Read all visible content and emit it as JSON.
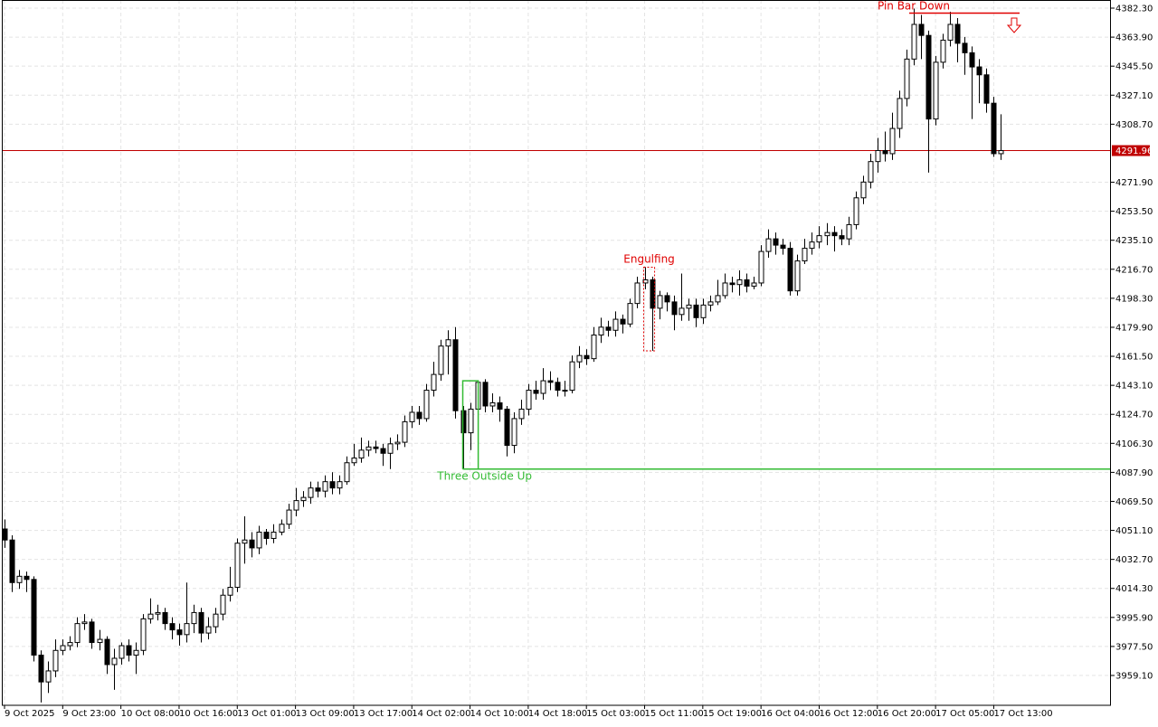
{
  "chart_data": {
    "type": "candlestick",
    "categories": [
      "9 Oct 2025",
      null,
      null,
      null,
      null,
      null,
      null,
      null,
      "9 Oct 23:00",
      null,
      null,
      null,
      null,
      null,
      null,
      null,
      "10 Oct 08:00",
      null,
      null,
      null,
      null,
      null,
      null,
      null,
      "10 Oct 16:00",
      null,
      null,
      null,
      null,
      null,
      null,
      null,
      "13 Oct 01:00",
      null,
      null,
      null,
      null,
      null,
      null,
      null,
      "13 Oct 09:00",
      null,
      null,
      null,
      null,
      null,
      null,
      null,
      "13 Oct 17:00",
      null,
      null,
      null,
      null,
      null,
      null,
      null,
      "14 Oct 02:00",
      null,
      null,
      null,
      null,
      null,
      null,
      null,
      "14 Oct 10:00",
      null,
      null,
      null,
      null,
      null,
      null,
      null,
      "14 Oct 18:00",
      null,
      null,
      null,
      null,
      null,
      null,
      null,
      "15 Oct 03:00",
      null,
      null,
      null,
      null,
      null,
      null,
      null,
      "15 Oct 11:00",
      null,
      null,
      null,
      null,
      null,
      null,
      null,
      "15 Oct 19:00",
      null,
      null,
      null,
      null,
      null,
      null,
      null,
      "16 Oct 04:00",
      null,
      null,
      null,
      null,
      null,
      null,
      null,
      "16 Oct 12:00",
      null,
      null,
      null,
      null,
      null,
      null,
      null,
      "16 Oct 20:00",
      null,
      null,
      null,
      null,
      null,
      null,
      null,
      "17 Oct 05:00",
      null,
      null,
      null,
      null,
      null,
      null,
      null,
      "17 Oct 13:00",
      null
    ],
    "open": [
      4052,
      4045,
      4018,
      4022,
      4020,
      3972,
      3955,
      3962,
      3975,
      3978,
      3980,
      3992,
      3993,
      3980,
      3982,
      3966,
      3970,
      3978,
      3972,
      3975,
      3995,
      3998,
      3999,
      3992,
      3988,
      3985,
      3992,
      3999,
      3986,
      3990,
      3998,
      4010,
      4015,
      4043,
      4045,
      4040,
      4050,
      4046,
      4050,
      4055,
      4064,
      4070,
      4072,
      4078,
      4076,
      4082,
      4078,
      4082,
      4094,
      4097,
      4102,
      4104,
      4103,
      4100,
      4106,
      4107,
      4120,
      4126,
      4122,
      4140,
      4150,
      4168,
      4172,
      4127,
      4113,
      4128,
      4145,
      4130,
      4132,
      4128,
      4105,
      4122,
      4128,
      4140,
      4138,
      4146,
      4145,
      4140,
      4140,
      4158,
      4162,
      4160,
      4175,
      4180,
      4178,
      4185,
      4182,
      4195,
      4208,
      4210,
      4192,
      4200,
      4196,
      4188,
      4192,
      4194,
      4186,
      4194,
      4196,
      4200,
      4208,
      4207,
      4210,
      4206,
      4208,
      4228,
      4236,
      4232,
      4230,
      4203,
      4222,
      4230,
      4234,
      4238,
      4240,
      4238,
      4236,
      4245,
      4262,
      4272,
      4285,
      4292,
      4290,
      4306,
      4325,
      4350,
      4372,
      4365,
      4312,
      4348,
      4362,
      4372,
      4360,
      4354,
      4345,
      4340,
      4322,
      4290
    ],
    "high": [
      4058,
      4048,
      4026,
      4025,
      4022,
      3975,
      3968,
      3982,
      3982,
      3984,
      3996,
      3998,
      3995,
      3988,
      3984,
      3976,
      3980,
      3982,
      3980,
      3998,
      4008,
      4004,
      4002,
      3996,
      3992,
      4018,
      4004,
      4002,
      3996,
      4002,
      4014,
      4028,
      4046,
      4060,
      4050,
      4054,
      4052,
      4055,
      4058,
      4068,
      4078,
      4076,
      4082,
      4082,
      4086,
      4088,
      4086,
      4098,
      4106,
      4110,
      4108,
      4108,
      4106,
      4110,
      4112,
      4124,
      4130,
      4130,
      4144,
      4158,
      4172,
      4178,
      4180,
      4130,
      4132,
      4146,
      4147,
      4138,
      4136,
      4130,
      4126,
      4134,
      4144,
      4146,
      4154,
      4152,
      4148,
      4146,
      4162,
      4168,
      4166,
      4180,
      4186,
      4184,
      4190,
      4188,
      4198,
      4212,
      4218,
      4212,
      4203,
      4202,
      4200,
      4214,
      4198,
      4198,
      4198,
      4200,
      4210,
      4214,
      4212,
      4216,
      4214,
      4212,
      4232,
      4242,
      4240,
      4236,
      4234,
      4226,
      4236,
      4240,
      4244,
      4246,
      4244,
      4242,
      4250,
      4266,
      4276,
      4290,
      4300,
      4304,
      4316,
      4330,
      4356,
      4382,
      4378,
      4368,
      4352,
      4366,
      4380,
      4376,
      4364,
      4358,
      4350,
      4344,
      4326,
      4315
    ],
    "low": [
      4040,
      4012,
      4014,
      4012,
      3968,
      3942,
      3948,
      3958,
      3972,
      3975,
      3977,
      3988,
      3976,
      3975,
      3960,
      3950,
      3966,
      3968,
      3960,
      3972,
      3992,
      3994,
      3988,
      3982,
      3978,
      3980,
      3986,
      3980,
      3982,
      3986,
      3994,
      4006,
      4012,
      4030,
      4034,
      4036,
      4042,
      4043,
      4048,
      4052,
      4060,
      4066,
      4068,
      4072,
      4072,
      4074,
      4074,
      4080,
      4092,
      4094,
      4098,
      4100,
      4092,
      4090,
      4102,
      4104,
      4116,
      4118,
      4120,
      4136,
      4146,
      4150,
      4122,
      4090,
      4102,
      4124,
      4126,
      4126,
      4120,
      4098,
      4100,
      4118,
      4124,
      4134,
      4134,
      4140,
      4136,
      4136,
      4138,
      4154,
      4156,
      4158,
      4170,
      4174,
      4174,
      4176,
      4180,
      4192,
      4204,
      4165,
      4185,
      4190,
      4178,
      4184,
      4184,
      4180,
      4182,
      4190,
      4194,
      4198,
      4202,
      4200,
      4202,
      4204,
      4206,
      4224,
      4226,
      4226,
      4200,
      4200,
      4220,
      4226,
      4230,
      4232,
      4228,
      4232,
      4232,
      4242,
      4258,
      4268,
      4278,
      4285,
      4286,
      4300,
      4320,
      4346,
      4350,
      4278,
      4308,
      4344,
      4358,
      4348,
      4340,
      4312,
      4322,
      4316,
      4288,
      4286
    ],
    "close": [
      4045,
      4018,
      4022,
      4020,
      3972,
      3955,
      3962,
      3975,
      3978,
      3980,
      3992,
      3993,
      3980,
      3982,
      3966,
      3970,
      3978,
      3972,
      3975,
      3995,
      3998,
      3999,
      3992,
      3988,
      3985,
      3992,
      3999,
      3986,
      3990,
      3998,
      4010,
      4015,
      4043,
      4045,
      4040,
      4050,
      4046,
      4050,
      4055,
      4064,
      4070,
      4072,
      4078,
      4076,
      4082,
      4078,
      4082,
      4094,
      4097,
      4102,
      4104,
      4103,
      4100,
      4106,
      4107,
      4120,
      4126,
      4122,
      4140,
      4150,
      4168,
      4172,
      4127,
      4113,
      4128,
      4145,
      4130,
      4132,
      4128,
      4105,
      4122,
      4128,
      4140,
      4138,
      4146,
      4145,
      4140,
      4140,
      4158,
      4162,
      4160,
      4175,
      4180,
      4178,
      4185,
      4182,
      4195,
      4208,
      4210,
      4192,
      4200,
      4196,
      4188,
      4192,
      4194,
      4186,
      4194,
      4196,
      4200,
      4208,
      4207,
      4210,
      4206,
      4208,
      4228,
      4236,
      4232,
      4230,
      4203,
      4222,
      4230,
      4234,
      4238,
      4240,
      4238,
      4236,
      4245,
      4262,
      4272,
      4285,
      4292,
      4290,
      4306,
      4325,
      4350,
      4372,
      4365,
      4312,
      4348,
      4362,
      4372,
      4360,
      4354,
      4345,
      4340,
      4322,
      4290,
      4291.96
    ],
    "up_color": "#ffffff",
    "down_color": "#000000",
    "ylim": [
      3940.18,
      4387.46
    ],
    "yticks": [
      {
        "value": 4382.3,
        "label": "4382.30"
      },
      {
        "value": 4363.9,
        "label": "4363.90"
      },
      {
        "value": 4345.5,
        "label": "4345.50"
      },
      {
        "value": 4327.1,
        "label": "4327.10"
      },
      {
        "value": 4308.7,
        "label": "4308.70"
      },
      {
        "value": 4271.9,
        "label": "4271.90"
      },
      {
        "value": 4253.5,
        "label": "4253.50"
      },
      {
        "value": 4235.1,
        "label": "4235.10"
      },
      {
        "value": 4216.7,
        "label": "4216.70"
      },
      {
        "value": 4198.3,
        "label": "4198.30"
      },
      {
        "value": 4179.9,
        "label": "4179.90"
      },
      {
        "value": 4161.5,
        "label": "4161.50"
      },
      {
        "value": 4143.1,
        "label": "4143.10"
      },
      {
        "value": 4124.7,
        "label": "4124.70"
      },
      {
        "value": 4106.3,
        "label": "4106.30"
      },
      {
        "value": 4087.9,
        "label": "4087.90"
      },
      {
        "value": 4069.5,
        "label": "4069.50"
      },
      {
        "value": 4051.1,
        "label": "4051.10"
      },
      {
        "value": 4032.7,
        "label": "4032.70"
      },
      {
        "value": 4014.3,
        "label": "4014.30"
      },
      {
        "value": 3995.9,
        "label": "3995.90"
      },
      {
        "value": 3977.5,
        "label": "3977.50"
      },
      {
        "value": 3959.1,
        "label": "3959.10"
      }
    ],
    "grid": true,
    "last_price": 4291.96,
    "last_price_color": "#c00000",
    "annotations": [
      {
        "text": "Pin Bar Down",
        "color": "#e00000"
      },
      {
        "text": "Engulfing",
        "color": "#e00000"
      },
      {
        "text": "Three Outside Up",
        "color": "#33bb33"
      }
    ]
  }
}
